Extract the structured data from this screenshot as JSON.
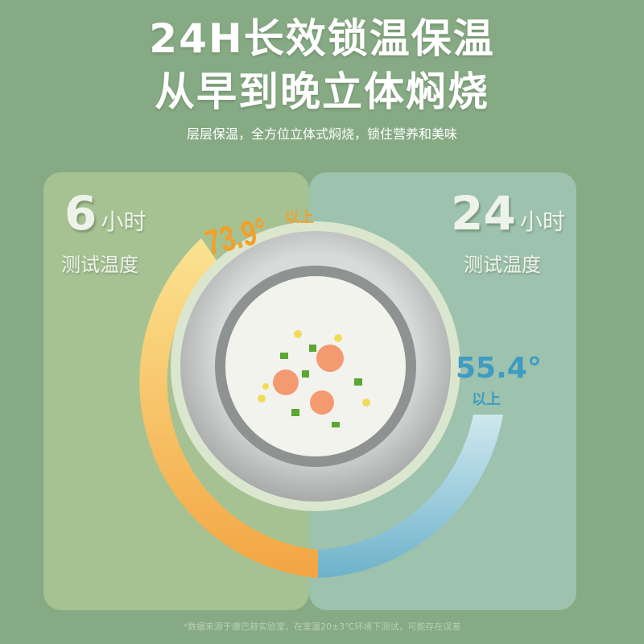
{
  "headline": {
    "line1": "24H长效锁温保温",
    "line2": "从早到晚立体焖烧",
    "subtitle": "层层保温，全方位立体式焖烧，锁住营养和美味"
  },
  "left_panel": {
    "hours": "6",
    "unit": "小时",
    "label": "测试温度",
    "temp": "73.9°",
    "temp_suffix": "以上",
    "color": "#f2a02a"
  },
  "right_panel": {
    "hours": "24",
    "unit": "小时",
    "label": "测试温度",
    "temp": "55.4°",
    "temp_suffix": "以上",
    "color": "#3f9bc0"
  },
  "footnote": "*数据来源于康巴赫实验室，在室温20±3℃环境下测试，可能存在误差"
}
